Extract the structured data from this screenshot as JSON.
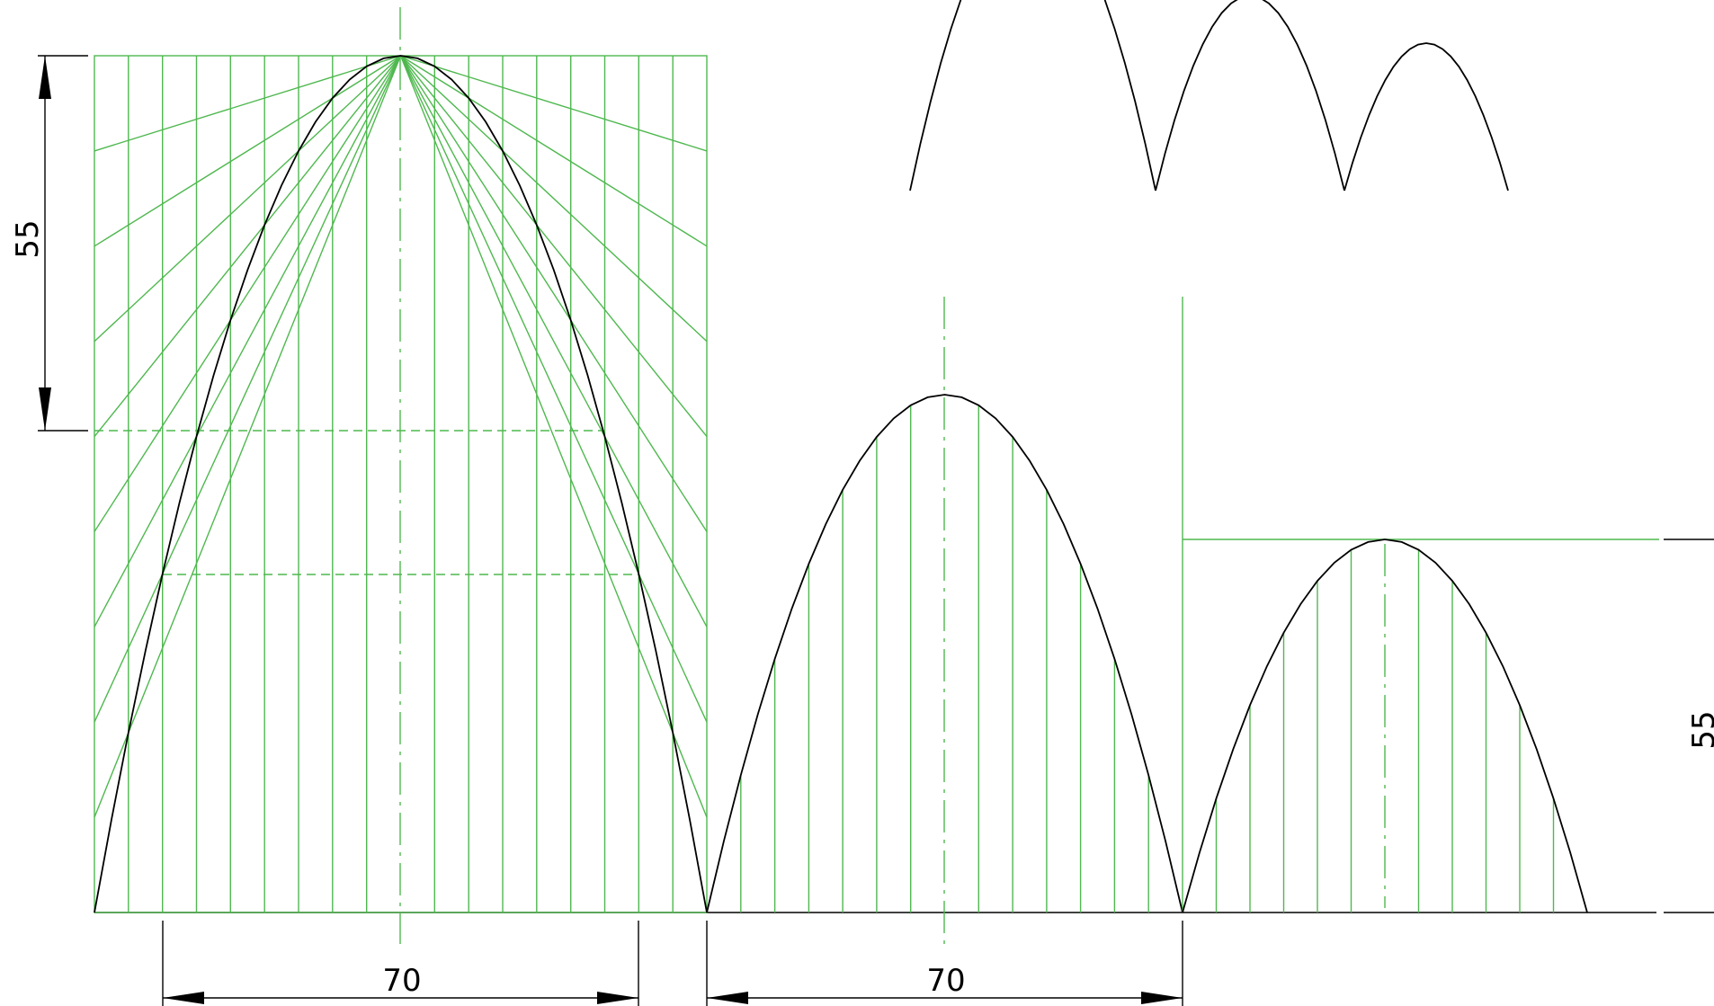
{
  "colors": {
    "construction": "#4fb84f",
    "curve": "#000000",
    "background": "#ffffff"
  },
  "dimensions": {
    "left_height": "55",
    "right_height": "55",
    "width_1": "70",
    "width_2": "70"
  }
}
